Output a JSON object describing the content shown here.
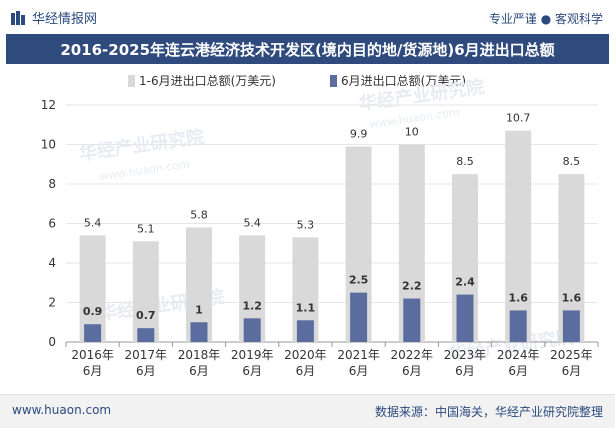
{
  "header": {
    "brand": "华经情报网",
    "slogan": "专业严谨 ● 客观科学",
    "title": "2016-2025年连云港经济技术开发区(境内目的地/货源地)6月进出口总额"
  },
  "watermark": "华经产业研究院",
  "watermark_url": "www.huaon.com",
  "footer": {
    "url": "www.huaon.com",
    "source": "数据来源：中国海关，华经产业研究院整理"
  },
  "colors": {
    "series1": "#d9d9d9",
    "series2": "#5b6d9e",
    "title_bg": "#2f4a7d",
    "brand": "#2b4a7e",
    "grid": "#e6e6e6"
  },
  "chart_data": {
    "type": "bar",
    "title": "2016-2025年连云港经济技术开发区(境内目的地/货源地)6月进出口总额",
    "categories": [
      "2016年\n6月",
      "2017年\n6月",
      "2018年\n6月",
      "2019年\n6月",
      "2020年\n6月",
      "2021年\n6月",
      "2022年\n6月",
      "2023年\n6月",
      "2024年\n6月",
      "2025年\n6月"
    ],
    "series": [
      {
        "name": "1-6月进出口总额(万美元)",
        "values": [
          5.4,
          5.1,
          5.8,
          5.4,
          5.3,
          9.9,
          10,
          8.5,
          10.7,
          8.5
        ]
      },
      {
        "name": "6月进出口总额(万美元)",
        "values": [
          0.9,
          0.7,
          1,
          1.2,
          1.1,
          2.5,
          2.2,
          2.4,
          1.6,
          1.6
        ]
      }
    ],
    "value_labels": [
      [
        "5.4",
        "5.1",
        "5.8",
        "5.4",
        "5.3",
        "9.9",
        "10",
        "8.5",
        "10.7",
        "8.5"
      ],
      [
        "0.9",
        "0.7",
        "1",
        "1.2",
        "1.1",
        "2.5",
        "2.2",
        "2.4",
        "1.6",
        "1.6"
      ]
    ],
    "ylim": [
      0,
      12
    ],
    "yticks": [
      0,
      2,
      4,
      6,
      8,
      10,
      12
    ],
    "grid": true,
    "legend_position": "top",
    "xlabel": "",
    "ylabel": ""
  }
}
